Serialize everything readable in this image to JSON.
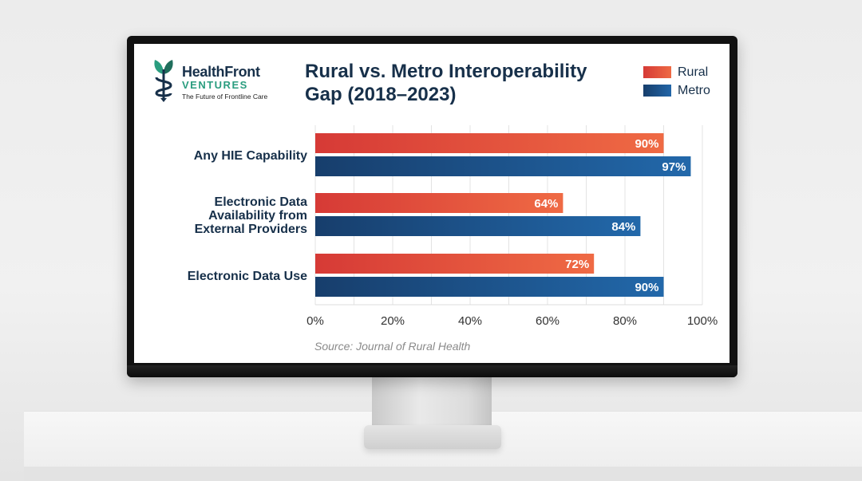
{
  "brand": {
    "name": "HealthFront",
    "sub": "VENTURES",
    "tagline": "The Future of Frontline Care"
  },
  "chart_data": {
    "type": "bar",
    "orientation": "horizontal",
    "title": "Rural vs. Metro Interoperability Gap (2018–2023)",
    "title_lines": [
      "Rural vs. Metro Interoperability",
      "Gap (2018–2023)"
    ],
    "categories": [
      "Any HIE Capability",
      "Electronic Data Availability from External Providers",
      "Electronic Data Use"
    ],
    "category_lines": [
      [
        "Any HIE Capability"
      ],
      [
        "Electronic Data",
        "Availability from",
        "External Providers"
      ],
      [
        "Electronic Data Use"
      ]
    ],
    "series": [
      {
        "name": "Rural",
        "values": [
          90,
          64,
          72
        ],
        "labels": [
          "90%",
          "64%",
          "72%"
        ],
        "color": "#e8503a"
      },
      {
        "name": "Metro",
        "values": [
          97,
          84,
          90
        ],
        "labels": [
          "97%",
          "84%",
          "90%"
        ],
        "color": "#1c4f86"
      }
    ],
    "xlim": [
      0,
      100
    ],
    "xticks": [
      0,
      20,
      40,
      60,
      80,
      100
    ],
    "xtick_labels": [
      "0%",
      "20%",
      "40%",
      "60%",
      "80%",
      "100%"
    ],
    "grid": true,
    "legend": "top-right",
    "source": "Source: Journal of Rural Health"
  }
}
